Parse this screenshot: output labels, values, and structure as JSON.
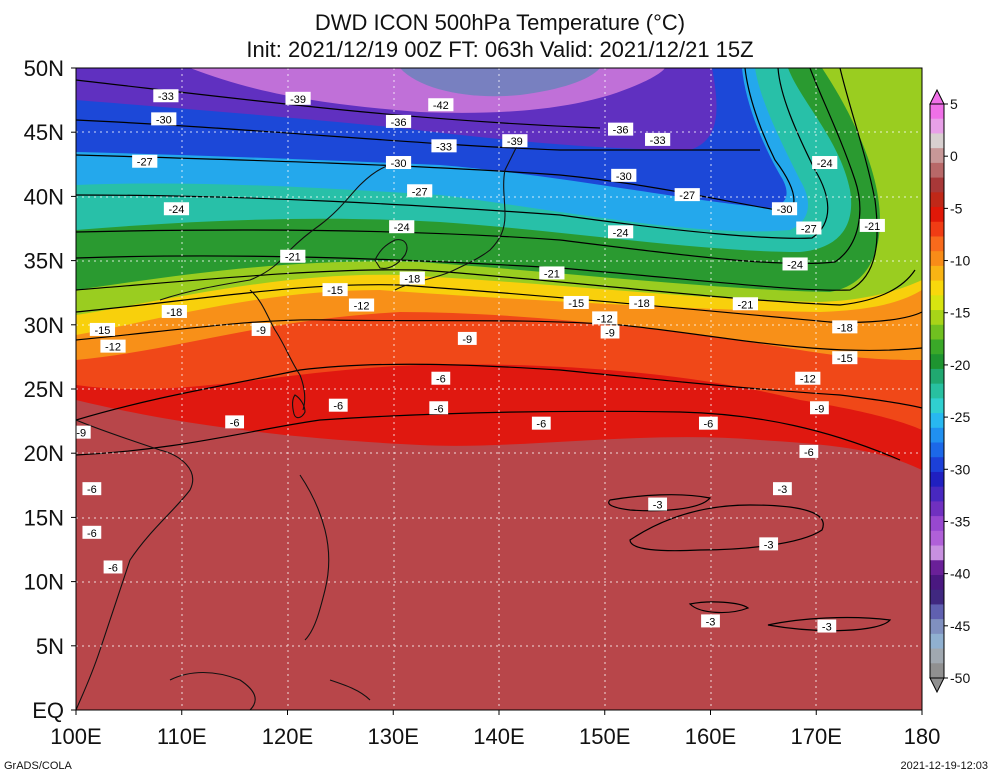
{
  "title_line1": "DWD ICON 500hPa Temperature (°C)",
  "title_line2": "Init: 2021/12/19 00Z  FT: 063h  Valid: 2021/12/21 15Z",
  "credit": "GrADS/COLA",
  "timestamp": "2021-12-19-12:03",
  "map": {
    "lon_range": [
      100,
      180
    ],
    "lat_range": [
      0,
      50
    ],
    "lon_ticks": [
      "100E",
      "110E",
      "120E",
      "130E",
      "140E",
      "150E",
      "160E",
      "170E",
      "180"
    ],
    "lat_ticks": [
      "EQ",
      "5N",
      "10N",
      "15N",
      "20N",
      "25N",
      "30N",
      "35N",
      "40N",
      "45N",
      "50N"
    ],
    "grid": true
  },
  "colorbar": {
    "labels": [
      "5",
      "0",
      "-5",
      "-10",
      "-15",
      "-20",
      "-25",
      "-30",
      "-35",
      "-40",
      "-45",
      "-50"
    ],
    "colors": [
      "#f070e8",
      "#e8a0e8",
      "#d8d0d0",
      "#c89898",
      "#b86868",
      "#a83838",
      "#c02818",
      "#e01808",
      "#f03c14",
      "#f86a1c",
      "#f88c18",
      "#f8b414",
      "#f8d80c",
      "#d8e410",
      "#a8d418",
      "#70c020",
      "#3aa828",
      "#1e9430",
      "#20a870",
      "#28c0a0",
      "#30d0d0",
      "#28b8f0",
      "#2090f0",
      "#1c68e8",
      "#1c40d8",
      "#2020c0",
      "#4828c0",
      "#7030c0",
      "#9848d0",
      "#b060d8",
      "#c890e0",
      "#6a2098",
      "#4a1880",
      "#402880",
      "#6060b0",
      "#8090c0",
      "#90b0d0",
      "#a0a8b0",
      "#909090"
    ]
  },
  "contour_labels": [
    {
      "text": "-33",
      "lon": 108.5,
      "lat": 47.8
    },
    {
      "text": "-39",
      "lon": 121.0,
      "lat": 47.6
    },
    {
      "text": "-42",
      "lon": 134.5,
      "lat": 47.1
    },
    {
      "text": "-30",
      "lon": 108.3,
      "lat": 46.0
    },
    {
      "text": "-36",
      "lon": 130.5,
      "lat": 45.8
    },
    {
      "text": "-39",
      "lon": 141.5,
      "lat": 44.3
    },
    {
      "text": "-36",
      "lon": 151.5,
      "lat": 45.2
    },
    {
      "text": "-33",
      "lon": 134.8,
      "lat": 43.9
    },
    {
      "text": "-33",
      "lon": 155.0,
      "lat": 44.4
    },
    {
      "text": "-30",
      "lon": 130.5,
      "lat": 42.6
    },
    {
      "text": "-27",
      "lon": 106.5,
      "lat": 42.7
    },
    {
      "text": "-30",
      "lon": 151.8,
      "lat": 41.6
    },
    {
      "text": "-24",
      "lon": 170.8,
      "lat": 42.6
    },
    {
      "text": "-27",
      "lon": 132.5,
      "lat": 40.4
    },
    {
      "text": "-27",
      "lon": 157.8,
      "lat": 40.1
    },
    {
      "text": "-24",
      "lon": 109.5,
      "lat": 39.0
    },
    {
      "text": "-30",
      "lon": 167.0,
      "lat": 39.0
    },
    {
      "text": "-24",
      "lon": 130.8,
      "lat": 37.6
    },
    {
      "text": "-24",
      "lon": 151.5,
      "lat": 37.2
    },
    {
      "text": "-27",
      "lon": 169.3,
      "lat": 37.5
    },
    {
      "text": "-21",
      "lon": 175.3,
      "lat": 37.7
    },
    {
      "text": "-21",
      "lon": 120.5,
      "lat": 35.3
    },
    {
      "text": "-24",
      "lon": 168.0,
      "lat": 34.7
    },
    {
      "text": "-21",
      "lon": 145.0,
      "lat": 34.0
    },
    {
      "text": "-18",
      "lon": 131.8,
      "lat": 33.6
    },
    {
      "text": "-15",
      "lon": 124.5,
      "lat": 32.7
    },
    {
      "text": "-12",
      "lon": 127.0,
      "lat": 31.5
    },
    {
      "text": "-15",
      "lon": 147.3,
      "lat": 31.7
    },
    {
      "text": "-18",
      "lon": 153.5,
      "lat": 31.7
    },
    {
      "text": "-21",
      "lon": 163.3,
      "lat": 31.6
    },
    {
      "text": "-18",
      "lon": 109.3,
      "lat": 31.0
    },
    {
      "text": "-12",
      "lon": 150.0,
      "lat": 30.5
    },
    {
      "text": "-9",
      "lon": 117.5,
      "lat": 29.6
    },
    {
      "text": "-9",
      "lon": 150.5,
      "lat": 29.4
    },
    {
      "text": "-18",
      "lon": 172.7,
      "lat": 29.8
    },
    {
      "text": "-15",
      "lon": 102.5,
      "lat": 29.6
    },
    {
      "text": "-9",
      "lon": 137.0,
      "lat": 28.9
    },
    {
      "text": "-12",
      "lon": 103.5,
      "lat": 28.3
    },
    {
      "text": "-15",
      "lon": 172.7,
      "lat": 27.4
    },
    {
      "text": "-6",
      "lon": 134.5,
      "lat": 25.8
    },
    {
      "text": "-12",
      "lon": 169.2,
      "lat": 25.8
    },
    {
      "text": "-6",
      "lon": 124.8,
      "lat": 23.7
    },
    {
      "text": "-6",
      "lon": 134.3,
      "lat": 23.5
    },
    {
      "text": "-9",
      "lon": 170.3,
      "lat": 23.5
    },
    {
      "text": "-6",
      "lon": 115.0,
      "lat": 22.4
    },
    {
      "text": "-6",
      "lon": 144.0,
      "lat": 22.3
    },
    {
      "text": "-6",
      "lon": 159.8,
      "lat": 22.3
    },
    {
      "text": "-9",
      "lon": 100.5,
      "lat": 21.6
    },
    {
      "text": "-6",
      "lon": 169.3,
      "lat": 20.1
    },
    {
      "text": "-6",
      "lon": 101.5,
      "lat": 17.2
    },
    {
      "text": "-3",
      "lon": 166.8,
      "lat": 17.2
    },
    {
      "text": "-3",
      "lon": 155.0,
      "lat": 16.0
    },
    {
      "text": "-6",
      "lon": 101.5,
      "lat": 13.8
    },
    {
      "text": "-3",
      "lon": 165.5,
      "lat": 12.9
    },
    {
      "text": "-6",
      "lon": 103.5,
      "lat": 11.1
    },
    {
      "text": "-3",
      "lon": 160.0,
      "lat": 6.9
    },
    {
      "text": "-3",
      "lon": 171.0,
      "lat": 6.5
    }
  ]
}
